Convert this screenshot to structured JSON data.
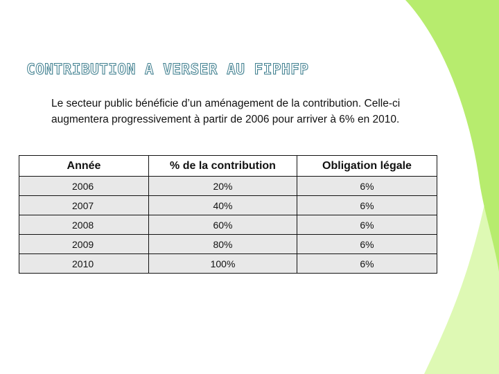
{
  "slide": {
    "title": "CONTRIBUTION A VERSER AU FIPHFP",
    "body_text": "Le secteur public bénéficie d’un aménagement de la contribution. Celle-ci augmentera progressivement à partir de  2006 pour arriver à 6% en 2010."
  },
  "table": {
    "headers": [
      "Année",
      "% de la contribution",
      "Obligation légale"
    ],
    "rows": [
      [
        "2006",
        "20%",
        "6%"
      ],
      [
        "2007",
        "40%",
        "6%"
      ],
      [
        "2008",
        "60%",
        "6%"
      ],
      [
        "2009",
        "80%",
        "6%"
      ],
      [
        "2010",
        "100%",
        "6%"
      ]
    ]
  },
  "colors": {
    "title_outline": "#3f7f8f",
    "accent_green": "#b7ec6e",
    "accent_green_light": "#def9b4",
    "row_fill": "#e8e8e8"
  }
}
